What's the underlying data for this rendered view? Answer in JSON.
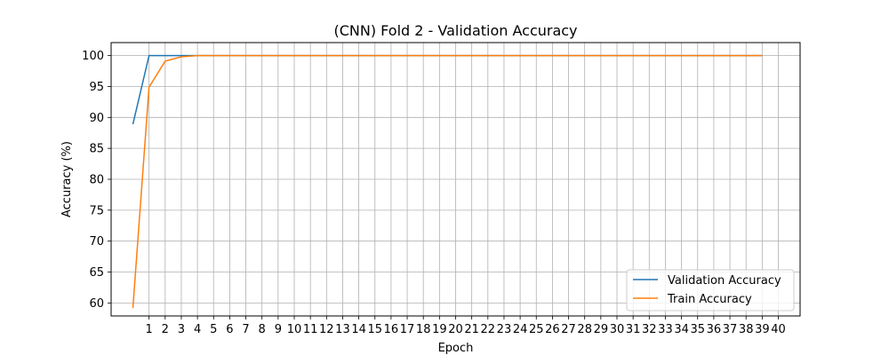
{
  "chart_data": {
    "type": "line",
    "title": "(CNN) Fold 2 - Validation Accuracy",
    "xlabel": "Epoch",
    "ylabel": "Accuracy (%)",
    "xlim": [
      -1.35,
      41.35
    ],
    "ylim": [
      57.9,
      102.1
    ],
    "x_ticks": [
      1,
      2,
      3,
      4,
      5,
      6,
      7,
      8,
      9,
      10,
      11,
      12,
      13,
      14,
      15,
      16,
      17,
      18,
      19,
      20,
      21,
      22,
      23,
      24,
      25,
      26,
      27,
      28,
      29,
      30,
      31,
      32,
      33,
      34,
      35,
      36,
      37,
      38,
      39,
      40
    ],
    "y_ticks": [
      60,
      65,
      70,
      75,
      80,
      85,
      90,
      95,
      100
    ],
    "grid": true,
    "legend_position": "lower-right",
    "x": [
      0,
      1,
      2,
      3,
      4,
      5,
      6,
      7,
      8,
      9,
      10,
      11,
      12,
      13,
      14,
      15,
      16,
      17,
      18,
      19,
      20,
      21,
      22,
      23,
      24,
      25,
      26,
      27,
      28,
      29,
      30,
      31,
      32,
      33,
      34,
      35,
      36,
      37,
      38,
      39
    ],
    "series": [
      {
        "name": "Validation Accuracy",
        "color": "#1f77b4",
        "values": [
          88.9,
          100,
          100,
          100,
          100,
          100,
          100,
          100,
          100,
          100,
          100,
          100,
          100,
          100,
          100,
          100,
          100,
          100,
          100,
          100,
          100,
          100,
          100,
          100,
          100,
          100,
          100,
          100,
          100,
          100,
          100,
          100,
          100,
          100,
          100,
          100,
          100,
          100,
          100,
          100
        ]
      },
      {
        "name": "Train Accuracy",
        "color": "#ff7f0e",
        "values": [
          59.2,
          94.9,
          99.1,
          99.8,
          100,
          100,
          100,
          100,
          100,
          100,
          100,
          100,
          100,
          100,
          100,
          100,
          100,
          100,
          100,
          100,
          100,
          100,
          100,
          100,
          100,
          100,
          100,
          100,
          100,
          100,
          100,
          100,
          100,
          100,
          100,
          100,
          100,
          100,
          100,
          100
        ]
      }
    ]
  }
}
